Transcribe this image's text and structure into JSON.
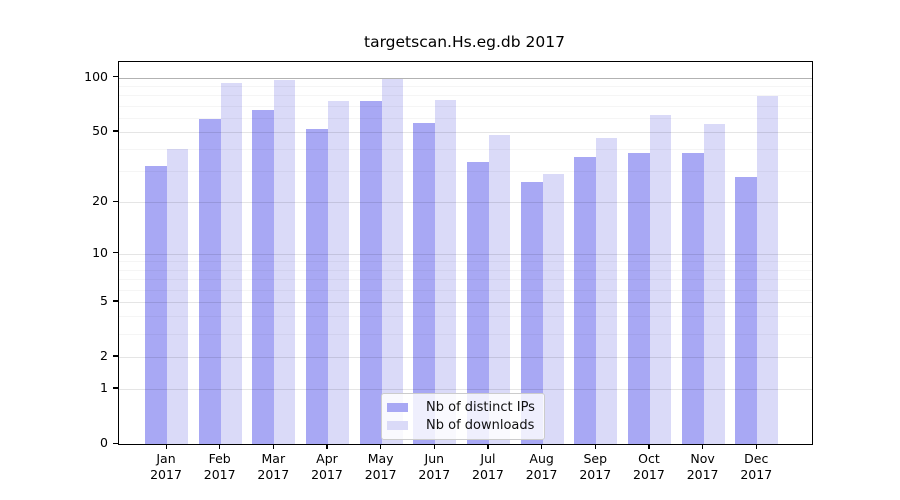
{
  "title": "targetscan.Hs.eg.db 2017",
  "chart_data": {
    "type": "bar",
    "title": "targetscan.Hs.eg.db 2017",
    "categories": [
      "Jan 2017",
      "Feb 2017",
      "Mar 2017",
      "Apr 2017",
      "May 2017",
      "Jun 2017",
      "Jul 2017",
      "Aug 2017",
      "Sep 2017",
      "Oct 2017",
      "Nov 2017",
      "Dec 2017"
    ],
    "series": [
      {
        "name": "Nb of distinct IPs",
        "color": "#a8a8f4",
        "values": [
          32,
          59,
          66,
          52,
          74,
          56,
          34,
          26,
          36,
          38,
          38,
          28
        ]
      },
      {
        "name": "Nb of downloads",
        "color": "#dadaf8",
        "values": [
          40,
          94,
          97,
          74,
          98,
          75,
          48,
          29,
          46,
          62,
          55,
          79
        ]
      }
    ],
    "xlabel": "",
    "ylabel": "",
    "yscale": "log1p",
    "ylim": [
      0,
      122
    ],
    "y_ticks": [
      0,
      1,
      2,
      5,
      10,
      20,
      50,
      100
    ],
    "y_minor_gridlines": [
      3,
      4,
      6,
      7,
      8,
      9,
      30,
      40,
      60,
      70,
      80,
      90
    ],
    "grid": "on",
    "legend_position": "bottom-center",
    "colors": {
      "bar_distinct_ips": "#a8a8f4",
      "bar_downloads": "#dadaf8",
      "gridline_major": "rgba(0,0,0,0.10)",
      "gridline_top": "rgba(0,0,0,0.30)",
      "gridline_minor": "rgba(0,0,0,0.04)",
      "axis": "#000000"
    }
  }
}
